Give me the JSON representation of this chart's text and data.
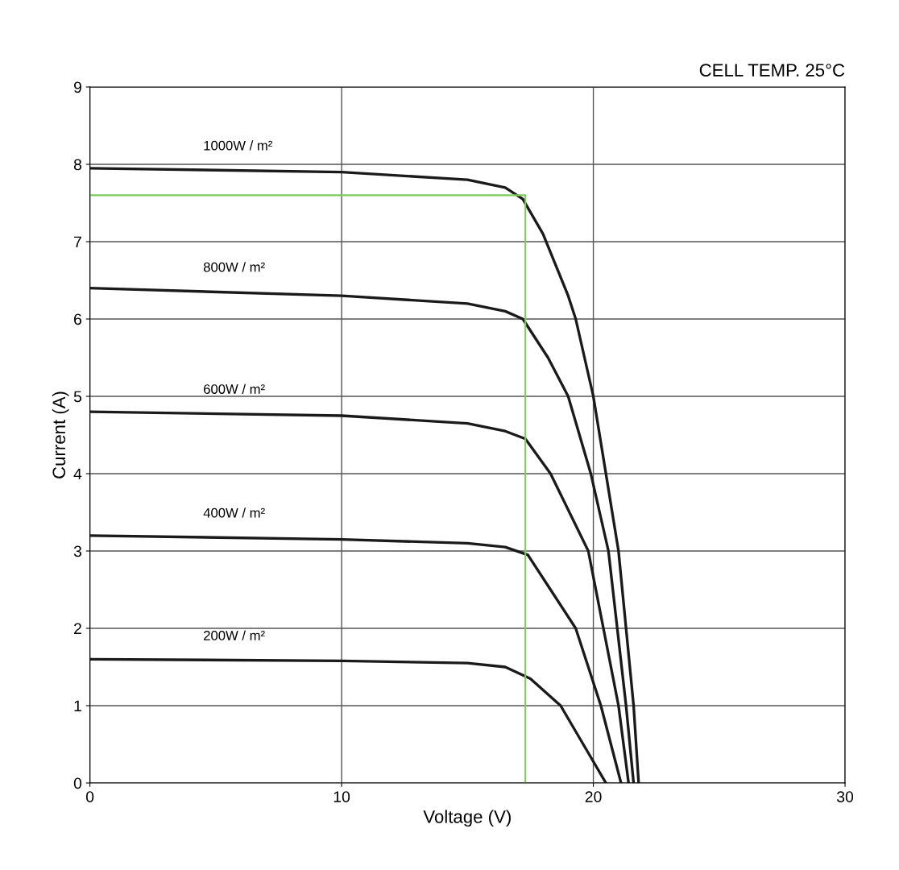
{
  "chart_data": {
    "type": "line",
    "xlabel": "Voltage (V)",
    "ylabel": "Current (A)",
    "annotations": [
      "CELL TEMP. 25°C"
    ],
    "xlim": [
      0,
      30
    ],
    "ylim": [
      0,
      9
    ],
    "xticks": [
      0,
      10,
      20,
      30
    ],
    "yticks": [
      0,
      1,
      2,
      3,
      4,
      5,
      6,
      7,
      8,
      9
    ],
    "grid": true,
    "legend": false,
    "marker": "none",
    "line_style": "solid",
    "series": [
      {
        "name": "1000W / m²",
        "color": "#1a1a1a",
        "x": [
          0,
          10,
          15,
          16.5,
          17.2,
          18,
          19,
          19.3,
          20,
          21,
          21.6,
          21.8
        ],
        "values": [
          7.95,
          7.9,
          7.8,
          7.7,
          7.55,
          7.1,
          6.3,
          6.0,
          5.0,
          3.0,
          1.0,
          0
        ]
      },
      {
        "name": "800W / m²",
        "color": "#1a1a1a",
        "x": [
          0,
          10,
          15,
          16.5,
          17.2,
          18.2,
          19.0,
          19.9,
          20.6,
          21.3,
          21.6
        ],
        "values": [
          6.4,
          6.3,
          6.2,
          6.1,
          6.0,
          5.5,
          5.0,
          4.0,
          3.0,
          1.0,
          0
        ]
      },
      {
        "name": "600W / m²",
        "color": "#1a1a1a",
        "x": [
          0,
          10,
          15,
          16.5,
          17.3,
          18.3,
          19.8,
          20.4,
          21.0,
          21.4
        ],
        "values": [
          4.8,
          4.75,
          4.65,
          4.55,
          4.45,
          4.0,
          3.0,
          2.0,
          1.0,
          0
        ]
      },
      {
        "name": "400W / m²",
        "color": "#1a1a1a",
        "x": [
          0,
          10,
          15,
          16.5,
          17.4,
          18.3,
          19.3,
          20.3,
          21.1
        ],
        "values": [
          3.2,
          3.15,
          3.1,
          3.05,
          2.95,
          2.5,
          2.0,
          1.0,
          0
        ]
      },
      {
        "name": "200W / m²",
        "color": "#1a1a1a",
        "x": [
          0,
          10,
          15,
          16.5,
          17.5,
          18.7,
          19.6,
          20.5
        ],
        "values": [
          1.6,
          1.58,
          1.55,
          1.5,
          1.35,
          1.0,
          0.5,
          0
        ]
      },
      {
        "color": "#7ccc5a",
        "x": [
          0,
          17.3,
          17.3
        ],
        "values": [
          7.6,
          7.6,
          0
        ]
      }
    ]
  }
}
